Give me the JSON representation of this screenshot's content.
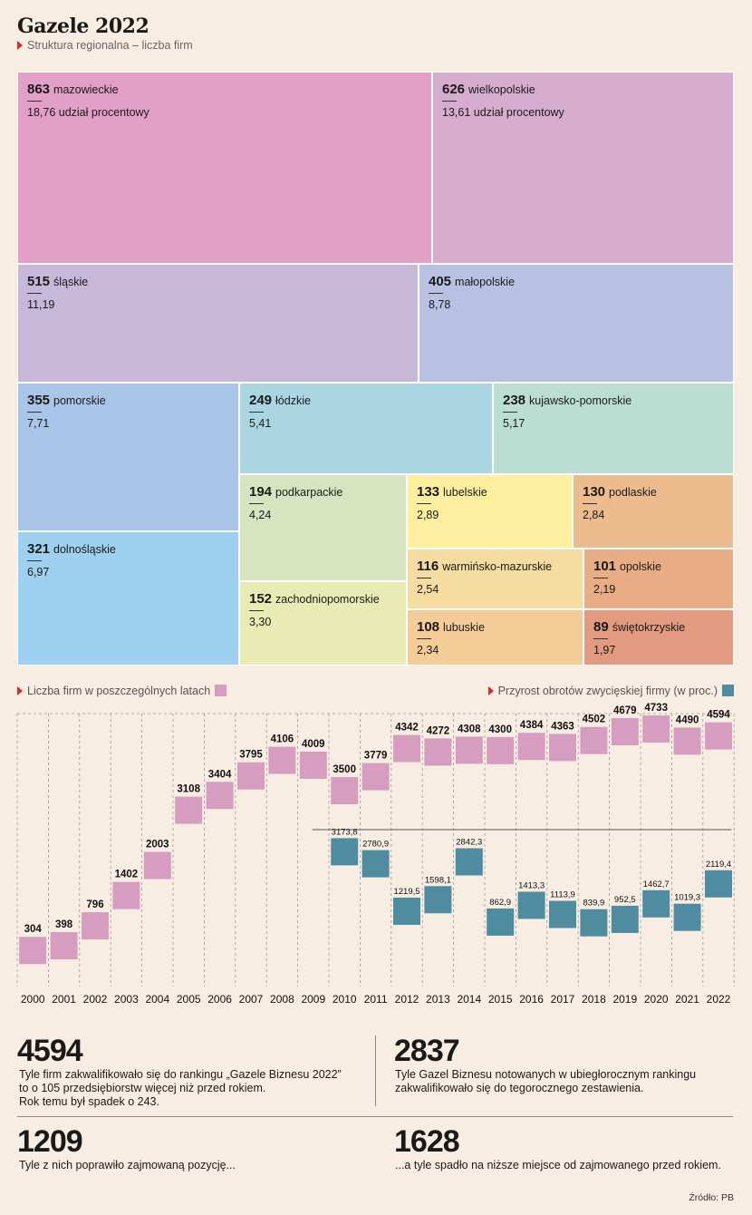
{
  "header": {
    "title": "Gazele 2022",
    "subtitle": "Struktura regionalna – liczba firm"
  },
  "colors": {
    "background": "#f8ede2",
    "firms_bar": "#d69dc0",
    "growth_bar": "#4f8ca0",
    "marker": "#e0262b"
  },
  "chart_data": [
    {
      "type": "treemap",
      "title": "Struktura regionalna – liczba firm",
      "items": [
        {
          "count": "863",
          "region": "mazowieckie",
          "share": "18,76",
          "share_label": "udział procentowy",
          "color": "#e2a0c6"
        },
        {
          "count": "626",
          "region": "wielkopolskie",
          "share": "13,61",
          "share_label": "udział procentowy",
          "color": "#d6adcf"
        },
        {
          "count": "515",
          "region": "śląskie",
          "share": "11,19",
          "share_label": "",
          "color": "#c7b8da"
        },
        {
          "count": "405",
          "region": "małopolskie",
          "share": "8,78",
          "share_label": "",
          "color": "#b8c1e1"
        },
        {
          "count": "355",
          "region": "pomorskie",
          "share": "7,71",
          "share_label": "",
          "color": "#a9c6e8"
        },
        {
          "count": "249",
          "region": "łódzkie",
          "share": "5,41",
          "share_label": "",
          "color": "#a9d6e0"
        },
        {
          "count": "238",
          "region": "kujawsko-pomorskie",
          "share": "5,17",
          "share_label": "",
          "color": "#badfd2"
        },
        {
          "count": "321",
          "region": "dolnośląskie",
          "share": "6,97",
          "share_label": "",
          "color": "#9ed0f0"
        },
        {
          "count": "194",
          "region": "podkarpackie",
          "share": "4,24",
          "share_label": "",
          "color": "#d6e4c0"
        },
        {
          "count": "133",
          "region": "lubelskie",
          "share": "2,89",
          "share_label": "",
          "color": "#fdeea0"
        },
        {
          "count": "130",
          "region": "podlaskie",
          "share": "2,84",
          "share_label": "",
          "color": "#edbc8e"
        },
        {
          "count": "152",
          "region": "zachodniopomorskie",
          "share": "3,30",
          "share_label": "",
          "color": "#e8ebb4"
        },
        {
          "count": "116",
          "region": "warmińsko-mazurskie",
          "share": "2,54",
          "share_label": "",
          "color": "#f5dca0"
        },
        {
          "count": "101",
          "region": "opolskie",
          "share": "2,19",
          "share_label": "",
          "color": "#e8ad85"
        },
        {
          "count": "108",
          "region": "lubuskie",
          "share": "2,34",
          "share_label": "",
          "color": "#f3cc98"
        },
        {
          "count": "89",
          "region": "świętokrzyskie",
          "share": "1,97",
          "share_label": "",
          "color": "#e29b80"
        }
      ]
    },
    {
      "type": "bar",
      "legend_firms": "Liczba firm w poszczególnych latach",
      "legend_growth": "Przyrost obrotów zwycięskiej firmy (w proc.)",
      "categories": [
        "2000",
        "2001",
        "2002",
        "2003",
        "2004",
        "2005",
        "2006",
        "2007",
        "2008",
        "2009",
        "2010",
        "2011",
        "2012",
        "2013",
        "2014",
        "2015",
        "2016",
        "2017",
        "2018",
        "2019",
        "2020",
        "2021",
        "2022"
      ],
      "series": [
        {
          "name": "Liczba firm w poszczególnych latach",
          "values": [
            304,
            398,
            796,
            1402,
            2003,
            3108,
            3404,
            3795,
            4106,
            4009,
            3500,
            3779,
            4342,
            4272,
            4308,
            4300,
            4384,
            4363,
            4502,
            4679,
            4733,
            4490,
            4594
          ]
        },
        {
          "name": "Przyrost obrotów zwycięskiej firmy (w proc.)",
          "values": [
            null,
            null,
            null,
            null,
            null,
            null,
            null,
            null,
            null,
            null,
            "3173,8",
            "2780,9",
            "1219,5",
            "1598,1",
            "2842,3",
            "862,9",
            "1413,3",
            "1113,9",
            "839,9",
            "952,5",
            "1462,7",
            "1019,3",
            "2119,4"
          ]
        }
      ]
    }
  ],
  "stats": [
    {
      "number": "4594",
      "lines": [
        "Tyle firm zakwalifikowało się do rankingu „Gazele Biznesu 2022”",
        "to o 105 przedsiębiorstw więcej niż przed rokiem.",
        "Rok temu był spadek o 243."
      ]
    },
    {
      "number": "2837",
      "lines": [
        "Tyle Gazel Biznesu notowanych w ubiegłorocznym rankingu",
        "zakwalifikowało się do tegorocznego zestawienia."
      ]
    },
    {
      "number": "1209",
      "lines": [
        "Tyle z nich poprawiło zajmowaną pozycję..."
      ]
    },
    {
      "number": "1628",
      "lines": [
        "...a tyle spadło na niższe miejsce od zajmowanego przed rokiem."
      ]
    }
  ],
  "source": "Źródło: PB"
}
